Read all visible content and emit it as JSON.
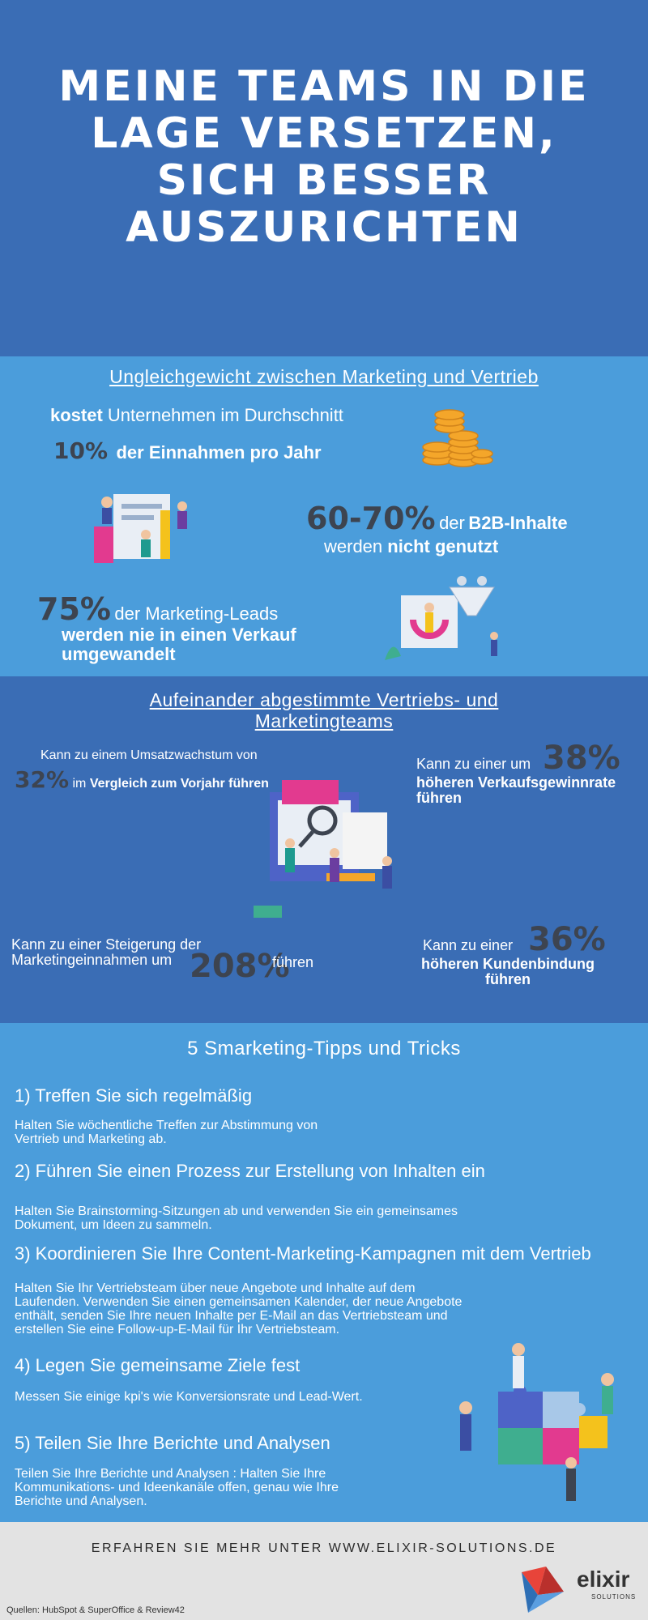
{
  "header": {
    "title_lines": [
      "MEINE TEAMS IN DIE",
      "LAGE VERSETZEN,",
      "SICH BESSER",
      "AUSZURICHTEN"
    ]
  },
  "section1": {
    "title": "Ungleichgewicht zwischen Marketing und Vertrieb",
    "stat1": {
      "line1_bold": "kostet",
      "line1_rest": " Unternehmen im Durchschnitt",
      "value": "10%",
      "line2": "der Einnahmen pro Jahr"
    },
    "stat2": {
      "value": "60-70%",
      "mid": "der",
      "bold": "B2B-Inhalte",
      "line2_a": "werden",
      "line2_b": "nicht genutzt"
    },
    "stat3": {
      "value": "75%",
      "line1": "der Marketing-Leads",
      "line2": "werden nie in einen Verkauf",
      "line3": "umgewandelt"
    }
  },
  "section2": {
    "title_line1": "Aufeinander abgestimmte Vertriebs- und",
    "title_line2": "Marketingteams",
    "s1": {
      "line1": "Kann zu einem Umsatzwachstum von",
      "value": "32%",
      "line2_a": "im",
      "line2_b": "Vergleich zum Vorjahr führen"
    },
    "s2": {
      "line1": "Kann zu einer um",
      "value": "38%",
      "line2": "höheren Verkaufsgewinnrate",
      "line3": "führen"
    },
    "s3": {
      "line1": "Kann zu einer Steigerung der",
      "line2": "Marketingeinnahmen um",
      "value": "208%",
      "line2_b": "führen"
    },
    "s4": {
      "line1": "Kann zu einer",
      "value": "36%",
      "line2": "höheren Kundenbindung",
      "line3": "führen"
    }
  },
  "section3": {
    "title": "5 Smarketing-Tipps und Tricks",
    "tips": [
      {
        "heading": "1) Treffen Sie sich regelmäßig",
        "lines": [
          "Halten Sie wöchentliche Treffen zur Abstimmung von",
          "Vertrieb und Marketing ab."
        ]
      },
      {
        "heading": "2) Führen Sie einen Prozess zur Erstellung von Inhalten ein",
        "lines": [
          "Halten Sie Brainstorming-Sitzungen ab und verwenden Sie ein gemeinsames",
          "Dokument, um Ideen zu sammeln."
        ]
      },
      {
        "heading": "3) Koordinieren Sie Ihre Content-Marketing-Kampagnen mit dem Vertrieb",
        "lines": [
          "Halten Sie Ihr Vertriebsteam über neue Angebote und Inhalte auf dem",
          "Laufenden. Verwenden Sie einen gemeinsamen Kalender, der neue Angebote",
          "enthält, senden Sie Ihre neuen Inhalte per E-Mail an das Vertriebsteam und",
          "erstellen Sie eine Follow-up-E-Mail für Ihr Vertriebsteam."
        ]
      },
      {
        "heading": "4) Legen Sie gemeinsame Ziele fest",
        "lines": [
          "Messen Sie einige kpi's wie Konversionsrate und Lead-Wert."
        ]
      },
      {
        "heading": "5) Teilen Sie Ihre Berichte und Analysen",
        "lines": [
          "Teilen Sie Ihre Berichte und Analysen : Halten Sie Ihre",
          "Kommunikations- und Ideenkanäle offen, genau wie Ihre",
          "Berichte und Analysen."
        ]
      }
    ]
  },
  "footer": {
    "cta": "ERFAHREN SIE MEHR UNTER WWW.ELIXIR-SOLUTIONS.DE",
    "sources": "Quellen:  HubSpot & SuperOffice & Review42",
    "logo_name": "elixir",
    "logo_sub": "SOLUTIONS"
  },
  "colors": {
    "dark_blue": "#3a6db5",
    "light_blue": "#4b9ddb",
    "stat_dark": "#3d4450",
    "footer_bg": "#e3e3e3"
  }
}
